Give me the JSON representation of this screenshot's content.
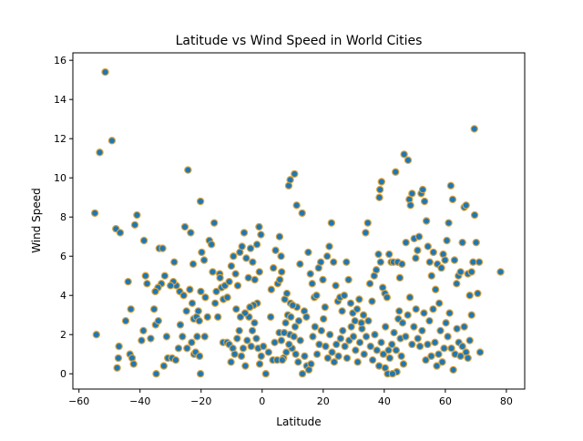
{
  "chart_data": {
    "type": "scatter",
    "title": "Latitude vs Wind Speed in World Cities",
    "xlabel": "Latitude",
    "ylabel": "Wind Speed",
    "xlim": [
      -62,
      86
    ],
    "ylim": [
      -0.78,
      16.38
    ],
    "xticks": [
      -60,
      -40,
      -20,
      0,
      20,
      40,
      60,
      80
    ],
    "yticks": [
      0,
      2,
      4,
      6,
      8,
      10,
      12,
      14,
      16
    ],
    "grid": false,
    "legend": "none",
    "marker_face_color": "#1f77b4",
    "marker_edge_color": "#d9a441",
    "points": [
      [
        -54.8,
        8.2
      ],
      [
        -54.3,
        2.0
      ],
      [
        -53.2,
        11.3
      ],
      [
        -51.4,
        15.4
      ],
      [
        -49.2,
        11.9
      ],
      [
        -47.9,
        7.4
      ],
      [
        -46.5,
        7.2
      ],
      [
        -46.9,
        1.4
      ],
      [
        -47.1,
        0.8
      ],
      [
        -47.5,
        0.3
      ],
      [
        -44.7,
        2.7
      ],
      [
        -43.9,
        4.7
      ],
      [
        -43.3,
        1.0
      ],
      [
        -42.6,
        0.8
      ],
      [
        -42.1,
        0.5
      ],
      [
        -41.7,
        7.6
      ],
      [
        -41.0,
        8.1
      ],
      [
        -43.0,
        3.3
      ],
      [
        -39.5,
        1.7
      ],
      [
        -38.7,
        6.8
      ],
      [
        -38.2,
        5.0
      ],
      [
        -37.7,
        4.6
      ],
      [
        -38.9,
        2.2
      ],
      [
        -36.5,
        1.8
      ],
      [
        -35.4,
        3.3
      ],
      [
        -34.9,
        2.5
      ],
      [
        -34.0,
        2.7
      ],
      [
        -33.7,
        6.4
      ],
      [
        -32.6,
        6.4
      ],
      [
        -31.9,
        5.0
      ],
      [
        -33.0,
        4.6
      ],
      [
        -34.1,
        4.4
      ],
      [
        -35.0,
        4.2
      ],
      [
        -34.7,
        0.0
      ],
      [
        -32.2,
        0.4
      ],
      [
        -31.3,
        1.9
      ],
      [
        -30.9,
        0.8
      ],
      [
        -29.5,
        0.8
      ],
      [
        -28.8,
        5.7
      ],
      [
        -28.1,
        4.5
      ],
      [
        -27.0,
        4.2
      ],
      [
        -26.1,
        1.9
      ],
      [
        -24.6,
        1.3
      ],
      [
        -25.3,
        7.5
      ],
      [
        -24.3,
        10.4
      ],
      [
        -23.4,
        7.2
      ],
      [
        -22.9,
        3.6
      ],
      [
        -22.4,
        2.8
      ],
      [
        -21.5,
        2.9
      ],
      [
        -20.9,
        3.2
      ],
      [
        -20.2,
        8.8
      ],
      [
        -19.8,
        6.2
      ],
      [
        -19.0,
        5.8
      ],
      [
        -20.1,
        4.2
      ],
      [
        -18.6,
        3.9
      ],
      [
        -17.9,
        2.9
      ],
      [
        -20.6,
        2.7
      ],
      [
        -21.3,
        1.9
      ],
      [
        -22.3,
        1.0
      ],
      [
        -23.1,
        1.6
      ],
      [
        -21.8,
        1.1
      ],
      [
        -20.5,
        0.9
      ],
      [
        -20.2,
        0.0
      ],
      [
        -18.8,
        1.9
      ],
      [
        -17.3,
        6.8
      ],
      [
        -16.6,
        6.6
      ],
      [
        -15.7,
        7.7
      ],
      [
        -15.4,
        3.6
      ],
      [
        -14.5,
        2.9
      ],
      [
        -13.9,
        5.1
      ],
      [
        -13.3,
        4.4
      ],
      [
        -12.7,
        3.8
      ],
      [
        -12.2,
        4.5
      ],
      [
        -13.8,
        4.9
      ],
      [
        -12.8,
        1.6
      ],
      [
        -11.5,
        1.6
      ],
      [
        -10.8,
        1.5
      ],
      [
        -10.2,
        0.6
      ],
      [
        -9.6,
        1.3
      ],
      [
        -9.0,
        1.0
      ],
      [
        -8.2,
        1.8
      ],
      [
        -7.5,
        2.2
      ],
      [
        -6.8,
        0.9
      ],
      [
        -6.2,
        1.3
      ],
      [
        -5.5,
        0.4
      ],
      [
        -4.9,
        1.7
      ],
      [
        -4.3,
        2.9
      ],
      [
        -3.6,
        1.4
      ],
      [
        -3.2,
        2.2
      ],
      [
        -2.5,
        2.6
      ],
      [
        -1.9,
        1.8
      ],
      [
        -1.3,
        1.3
      ],
      [
        -0.8,
        0.5
      ],
      [
        -0.3,
        0.9
      ],
      [
        0.4,
        1.4
      ],
      [
        1.2,
        0.0
      ],
      [
        2.1,
        1.1
      ],
      [
        2.8,
        2.9
      ],
      [
        3.5,
        0.7
      ],
      [
        4.1,
        1.6
      ],
      [
        4.9,
        0.7
      ],
      [
        5.6,
        2.1
      ],
      [
        6.3,
        1.7
      ],
      [
        7.0,
        0.8
      ],
      [
        7.7,
        2.6
      ],
      [
        8.4,
        3.0
      ],
      [
        9.1,
        2.0
      ],
      [
        9.8,
        1.3
      ],
      [
        10.4,
        1.9
      ],
      [
        11.0,
        1.0
      ],
      [
        11.8,
        0.6
      ],
      [
        12.5,
        1.7
      ],
      [
        13.2,
        0.0
      ],
      [
        13.9,
        0.9
      ],
      [
        14.6,
        0.4
      ],
      [
        15.3,
        0.2
      ],
      [
        16.0,
        0.5
      ],
      [
        16.6,
        1.9
      ],
      [
        17.3,
        2.4
      ],
      [
        18.0,
        1.0
      ],
      [
        18.7,
        1.5
      ],
      [
        19.4,
        2.2
      ],
      [
        20.1,
        2.8
      ],
      [
        20.8,
        1.4
      ],
      [
        21.5,
        0.8
      ],
      [
        22.2,
        2.0
      ],
      [
        22.9,
        1.1
      ],
      [
        23.6,
        0.6
      ],
      [
        24.3,
        1.5
      ],
      [
        25.0,
        0.9
      ],
      [
        25.7,
        1.8
      ],
      [
        26.4,
        2.2
      ],
      [
        27.1,
        1.4
      ],
      [
        27.8,
        0.8
      ],
      [
        28.5,
        1.7
      ],
      [
        29.2,
        2.4
      ],
      [
        29.9,
        1.9
      ],
      [
        30.6,
        1.2
      ],
      [
        31.3,
        0.6
      ],
      [
        32.0,
        1.6
      ],
      [
        32.7,
        2.3
      ],
      [
        33.4,
        1.0
      ],
      [
        34.1,
        1.9
      ],
      [
        34.8,
        2.7
      ],
      [
        35.5,
        1.4
      ],
      [
        36.2,
        0.7
      ],
      [
        36.9,
        2.0
      ],
      [
        37.6,
        1.2
      ],
      [
        38.3,
        0.4
      ],
      [
        39.0,
        1.6
      ],
      [
        39.7,
        1.0
      ],
      [
        40.4,
        2.4
      ],
      [
        41.1,
        0.0
      ],
      [
        41.8,
        0.8
      ],
      [
        42.5,
        1.5
      ],
      [
        43.2,
        2.1
      ],
      [
        43.9,
        1.2
      ],
      [
        44.6,
        2.8
      ],
      [
        45.3,
        1.8
      ],
      [
        46.0,
        2.6
      ],
      [
        -11.4,
        3.9
      ],
      [
        -10.8,
        4.7
      ],
      [
        -10.1,
        5.5
      ],
      [
        -9.4,
        6.0
      ],
      [
        -8.7,
        5.1
      ],
      [
        -8.0,
        4.5
      ],
      [
        -7.3,
        6.2
      ],
      [
        -6.6,
        6.5
      ],
      [
        -5.9,
        7.2
      ],
      [
        -5.2,
        5.9
      ],
      [
        -4.5,
        4.9
      ],
      [
        -3.8,
        6.4
      ],
      [
        -3.1,
        5.7
      ],
      [
        -2.4,
        4.8
      ],
      [
        -1.7,
        6.6
      ],
      [
        -1.0,
        7.5
      ],
      [
        -0.4,
        7.1
      ],
      [
        -0.9,
        5.2
      ],
      [
        -1.6,
        3.6
      ],
      [
        -2.8,
        3.5
      ],
      [
        -4.0,
        3.4
      ],
      [
        -5.6,
        3.1
      ],
      [
        -7.1,
        2.9
      ],
      [
        -8.5,
        3.3
      ],
      [
        3.0,
        4.3
      ],
      [
        3.7,
        5.4
      ],
      [
        4.4,
        6.3
      ],
      [
        5.1,
        4.6
      ],
      [
        5.8,
        4.8
      ],
      [
        6.4,
        5.2
      ],
      [
        5.7,
        7.0
      ],
      [
        6.2,
        6.0
      ],
      [
        7.4,
        3.8
      ],
      [
        8.1,
        4.1
      ],
      [
        9.3,
        3.6
      ],
      [
        8.7,
        9.6
      ],
      [
        9.2,
        9.9
      ],
      [
        10.6,
        10.2
      ],
      [
        11.3,
        8.6
      ],
      [
        12.4,
        5.6
      ],
      [
        13.1,
        8.2
      ],
      [
        13.8,
        3.2
      ],
      [
        14.5,
        2.9
      ],
      [
        15.1,
        6.2
      ],
      [
        15.8,
        5.1
      ],
      [
        16.4,
        4.6
      ],
      [
        17.1,
        3.9
      ],
      [
        17.8,
        4.0
      ],
      [
        18.5,
        5.4
      ],
      [
        19.2,
        5.7
      ],
      [
        19.9,
        4.8
      ],
      [
        20.6,
        3.4
      ],
      [
        21.3,
        6.0
      ],
      [
        22.0,
        6.5
      ],
      [
        22.7,
        7.7
      ],
      [
        23.4,
        5.7
      ],
      [
        24.1,
        4.5
      ],
      [
        24.8,
        3.7
      ],
      [
        25.5,
        3.9
      ],
      [
        26.2,
        3.2
      ],
      [
        26.9,
        4.0
      ],
      [
        27.6,
        5.7
      ],
      [
        28.3,
        4.8
      ],
      [
        29.0,
        3.6
      ],
      [
        29.7,
        3.1
      ],
      [
        30.4,
        2.7
      ],
      [
        31.1,
        3.3
      ],
      [
        31.8,
        3.8
      ],
      [
        32.5,
        2.6
      ],
      [
        33.2,
        3.0
      ],
      [
        33.9,
        7.2
      ],
      [
        34.6,
        7.7
      ],
      [
        35.3,
        4.6
      ],
      [
        36.0,
        3.7
      ],
      [
        36.7,
        5.0
      ],
      [
        37.4,
        5.3
      ],
      [
        38.1,
        6.1
      ],
      [
        38.8,
        5.7
      ],
      [
        39.5,
        4.4
      ],
      [
        38.6,
        9.4
      ],
      [
        39.1,
        9.8
      ],
      [
        38.4,
        9.0
      ],
      [
        40.2,
        4.1
      ],
      [
        40.9,
        3.9
      ],
      [
        41.6,
        6.1
      ],
      [
        42.3,
        5.7
      ],
      [
        43.0,
        5.7
      ],
      [
        43.7,
        10.3
      ],
      [
        44.4,
        5.7
      ],
      [
        45.1,
        4.9
      ],
      [
        45.8,
        5.6
      ],
      [
        46.5,
        11.2
      ],
      [
        47.1,
        6.7
      ],
      [
        47.8,
        10.9
      ],
      [
        48.2,
        8.9
      ],
      [
        48.6,
        8.6
      ],
      [
        49.1,
        9.2
      ],
      [
        49.8,
        6.9
      ],
      [
        50.3,
        5.9
      ],
      [
        50.9,
        6.3
      ],
      [
        51.4,
        7.0
      ],
      [
        52.1,
        9.2
      ],
      [
        52.6,
        9.4
      ],
      [
        53.2,
        8.8
      ],
      [
        53.8,
        7.8
      ],
      [
        54.3,
        6.5
      ],
      [
        54.9,
        5.7
      ],
      [
        55.5,
        5.0
      ],
      [
        56.1,
        6.2
      ],
      [
        56.8,
        4.3
      ],
      [
        57.4,
        5.6
      ],
      [
        58.0,
        3.6
      ],
      [
        58.7,
        5.4
      ],
      [
        59.3,
        6.1
      ],
      [
        59.9,
        5.8
      ],
      [
        60.5,
        6.8
      ],
      [
        61.1,
        7.7
      ],
      [
        61.8,
        9.6
      ],
      [
        62.4,
        8.9
      ],
      [
        63.0,
        5.8
      ],
      [
        63.7,
        4.6
      ],
      [
        64.3,
        5.0
      ],
      [
        65.0,
        5.2
      ],
      [
        65.6,
        6.7
      ],
      [
        66.2,
        8.5
      ],
      [
        66.8,
        8.6
      ],
      [
        67.4,
        5.1
      ],
      [
        68.0,
        4.0
      ],
      [
        68.6,
        5.2
      ],
      [
        69.1,
        5.7
      ],
      [
        69.6,
        8.1
      ],
      [
        70.1,
        6.7
      ],
      [
        70.6,
        4.1
      ],
      [
        71.1,
        5.7
      ],
      [
        69.5,
        12.5
      ],
      [
        78.1,
        5.2
      ],
      [
        71.4,
        1.1
      ],
      [
        47.0,
        1.9
      ],
      [
        47.7,
        3.0
      ],
      [
        48.4,
        3.9
      ],
      [
        49.1,
        1.5
      ],
      [
        49.7,
        2.4
      ],
      [
        50.4,
        3.3
      ],
      [
        51.0,
        1.8
      ],
      [
        51.7,
        1.4
      ],
      [
        52.4,
        2.2
      ],
      [
        53.0,
        3.1
      ],
      [
        53.6,
        0.7
      ],
      [
        54.2,
        1.5
      ],
      [
        54.8,
        2.7
      ],
      [
        55.4,
        0.9
      ],
      [
        56.0,
        3.3
      ],
      [
        56.6,
        1.6
      ],
      [
        57.2,
        0.4
      ],
      [
        57.8,
        1.0
      ],
      [
        58.4,
        2.2
      ],
      [
        59.0,
        0.6
      ],
      [
        59.6,
        1.3
      ],
      [
        60.2,
        2.6
      ],
      [
        60.8,
        1.9
      ],
      [
        61.4,
        3.1
      ],
      [
        62.0,
        1.3
      ],
      [
        62.6,
        0.2
      ],
      [
        63.2,
        1.0
      ],
      [
        63.8,
        2.3
      ],
      [
        64.4,
        1.6
      ],
      [
        65.0,
        0.9
      ],
      [
        65.6,
        1.4
      ],
      [
        66.2,
        2.4
      ],
      [
        66.8,
        1.1
      ],
      [
        67.4,
        0.8
      ],
      [
        68.0,
        1.7
      ],
      [
        68.6,
        3.0
      ],
      [
        44.9,
        3.2
      ],
      [
        45.6,
        0.9
      ],
      [
        46.3,
        0.5
      ],
      [
        44.1,
        0.1
      ],
      [
        42.7,
        0.0
      ],
      [
        41.4,
        1.2
      ],
      [
        40.3,
        0.3
      ],
      [
        12.0,
        2.7
      ],
      [
        11.4,
        3.4
      ],
      [
        10.8,
        2.4
      ],
      [
        10.0,
        3.5
      ],
      [
        9.4,
        2.9
      ],
      [
        8.8,
        1.5
      ],
      [
        7.9,
        1.1
      ],
      [
        7.2,
        2.1
      ],
      [
        6.6,
        0.7
      ],
      [
        -27.4,
        1.3
      ],
      [
        -26.8,
        2.5
      ],
      [
        -28.3,
        0.7
      ],
      [
        -29.1,
        4.7
      ],
      [
        -30.0,
        4.5
      ],
      [
        -25.7,
        4.0
      ],
      [
        -24.8,
        3.2
      ],
      [
        -23.7,
        4.3
      ],
      [
        -22.6,
        5.6
      ],
      [
        -16.2,
        5.2
      ],
      [
        -15.0,
        4.2
      ]
    ]
  }
}
